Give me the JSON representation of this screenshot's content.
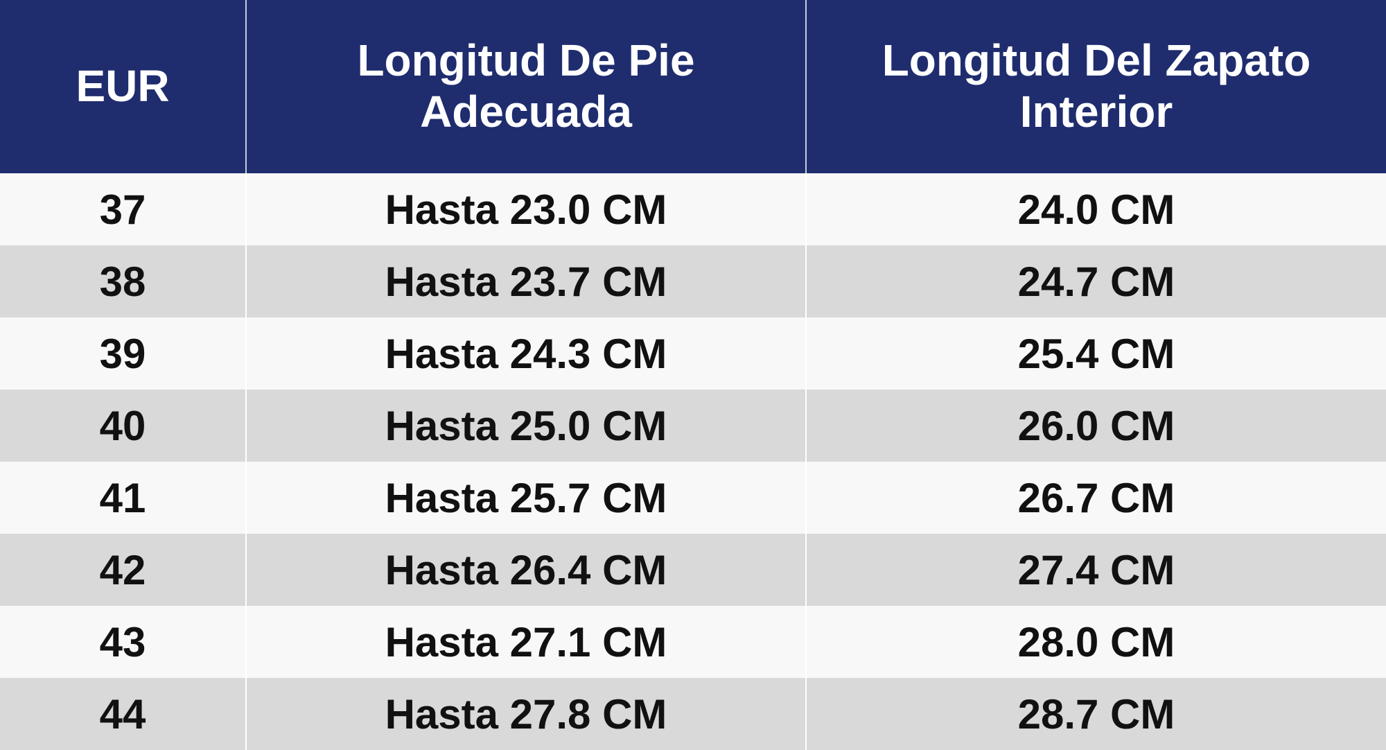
{
  "table": {
    "headers": [
      "EUR",
      "Longitud De Pie Adecuada",
      "Longitud Del Zapato Interior"
    ],
    "rows": [
      [
        "37",
        "Hasta 23.0 CM",
        "24.0 CM"
      ],
      [
        "38",
        "Hasta 23.7 CM",
        "24.7 CM"
      ],
      [
        "39",
        "Hasta 24.3 CM",
        "25.4 CM"
      ],
      [
        "40",
        "Hasta 25.0 CM",
        "26.0 CM"
      ],
      [
        "41",
        "Hasta 25.7 CM",
        "26.7 CM"
      ],
      [
        "42",
        "Hasta 26.4 CM",
        "27.4 CM"
      ],
      [
        "43",
        "Hasta 27.1 CM",
        "28.0 CM"
      ],
      [
        "44",
        "Hasta 27.8 CM",
        "28.7 CM"
      ]
    ]
  }
}
